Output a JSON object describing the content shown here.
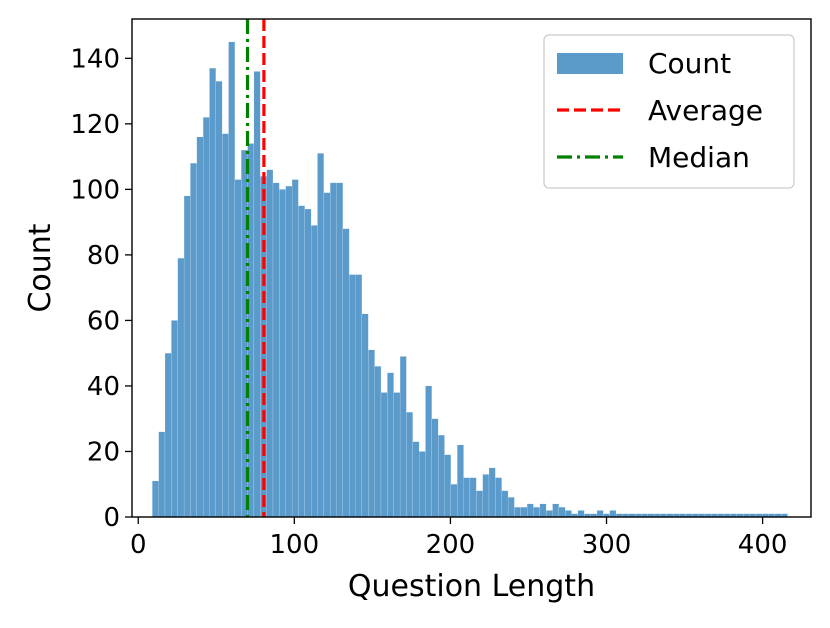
{
  "chart_data": {
    "type": "bar",
    "subtype": "histogram",
    "title": "",
    "xlabel": "Question Length",
    "ylabel": "Count",
    "xlim": [
      -4,
      431
    ],
    "ylim": [
      0,
      152
    ],
    "xticks": [
      0,
      100,
      200,
      300,
      400
    ],
    "yticks": [
      0,
      20,
      40,
      60,
      80,
      100,
      120,
      140
    ],
    "grid": false,
    "bin_width": 4.07,
    "bins_start": 9,
    "series": [
      {
        "name": "Count",
        "color": "#5b9bcc",
        "values": [
          11,
          26,
          50,
          60,
          79,
          98,
          108,
          116,
          122,
          137,
          133,
          117,
          145,
          103,
          112,
          114,
          136,
          104,
          106,
          102,
          100,
          101,
          103,
          95,
          94,
          89,
          111,
          99,
          102,
          102,
          88,
          74,
          74,
          62,
          51,
          46,
          38,
          44,
          38,
          49,
          32,
          23,
          20,
          40,
          30,
          25,
          19,
          10,
          22,
          12,
          12,
          8,
          13,
          15,
          12,
          8,
          6,
          3,
          3,
          4,
          3,
          4,
          2,
          4,
          3,
          2,
          1,
          2,
          1,
          1,
          2,
          1,
          2,
          1,
          1,
          1,
          1,
          1,
          1,
          1,
          1,
          1,
          1,
          1,
          1,
          1,
          1,
          1,
          1,
          1,
          1,
          1,
          1,
          1,
          1,
          1,
          1,
          1,
          1,
          1
        ]
      }
    ],
    "vlines": [
      {
        "name": "Average",
        "x": 80.5,
        "color": "#ff0000",
        "style": "dashed"
      },
      {
        "name": "Median",
        "x": 70,
        "color": "#008000",
        "style": "dashdot"
      }
    ],
    "legend": {
      "placement": "top-right",
      "entries": [
        {
          "label": "Count",
          "kind": "patch",
          "color": "#5b9bcc"
        },
        {
          "label": "Average",
          "kind": "dashed",
          "color": "#ff0000"
        },
        {
          "label": "Median",
          "kind": "dashdot",
          "color": "#008000"
        }
      ]
    }
  }
}
